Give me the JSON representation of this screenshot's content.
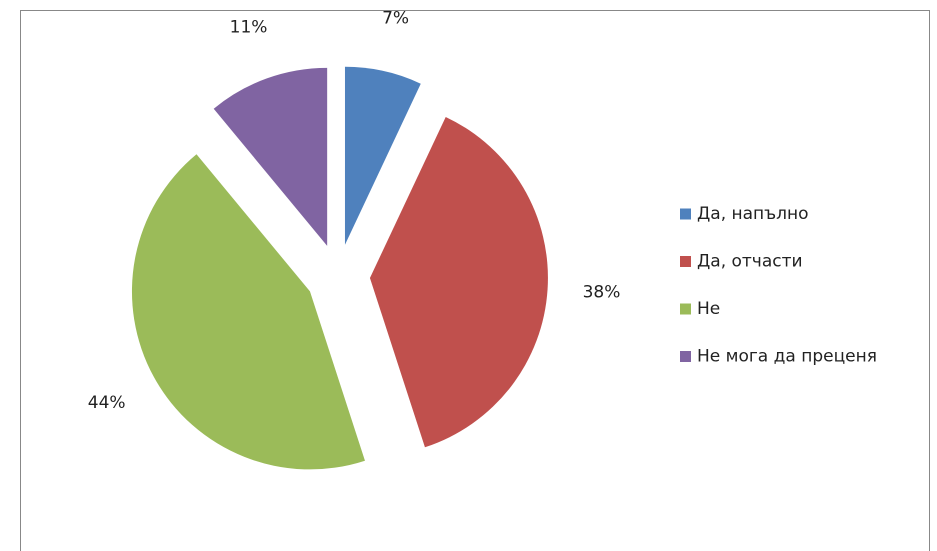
{
  "chart_data": {
    "type": "pie",
    "categories": [
      "Да, напълно",
      "Да, отчасти",
      "Не",
      "Не мога да преценя"
    ],
    "values": [
      7,
      38,
      44,
      11
    ],
    "value_labels": [
      "7%",
      "38%",
      "44%",
      "11%"
    ],
    "colors": [
      "#4f81bd",
      "#c0504d",
      "#9bbb59",
      "#8064a2"
    ],
    "legend": "right"
  }
}
